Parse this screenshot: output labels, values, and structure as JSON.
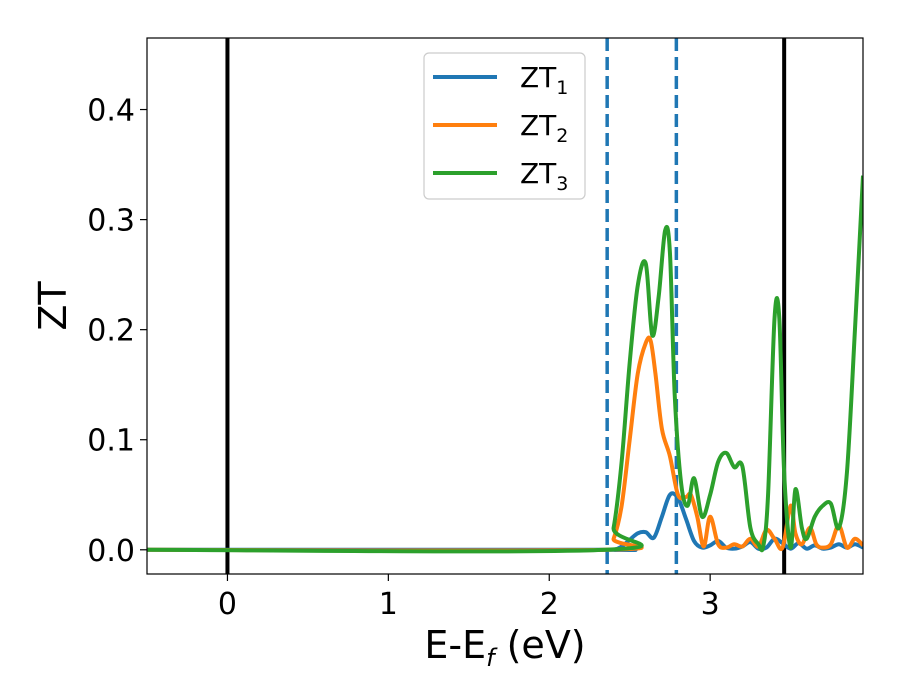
{
  "chart_data": {
    "type": "line",
    "xlabel": "E-E",
    "xlabel_sub": "f",
    "xlabel_unit": " (eV)",
    "ylabel": "ZT",
    "xlim": [
      -0.5,
      3.95
    ],
    "ylim": [
      -0.022,
      0.465
    ],
    "xticks": [
      0,
      1,
      2,
      3
    ],
    "xtick_labels": [
      "0",
      "1",
      "2",
      "3"
    ],
    "yticks": [
      0.0,
      0.1,
      0.2,
      0.3,
      0.4
    ],
    "ytick_labels": [
      "0.0",
      "0.1",
      "0.2",
      "0.3",
      "0.4"
    ],
    "grid": false,
    "legend_position": "top-center",
    "vlines": [
      {
        "x": 0.0,
        "style": "solid",
        "color": "#000000"
      },
      {
        "x": 3.46,
        "style": "solid",
        "color": "#000000"
      },
      {
        "x": 2.36,
        "style": "dashed",
        "color": "#1f77b4"
      },
      {
        "x": 2.79,
        "style": "dashed",
        "color": "#1f77b4"
      }
    ],
    "series": [
      {
        "name": "ZT",
        "name_sub": "1",
        "color": "#1f77b4",
        "x": [
          -0.5,
          2.3,
          2.4,
          2.45,
          2.5,
          2.55,
          2.6,
          2.65,
          2.7,
          2.75,
          2.8,
          2.85,
          2.9,
          2.95,
          3.0,
          3.05,
          3.1,
          3.15,
          3.2,
          3.25,
          3.3,
          3.35,
          3.4,
          3.45,
          3.5,
          3.55,
          3.6,
          3.65,
          3.7,
          3.75,
          3.8,
          3.85,
          3.9,
          3.95
        ],
        "y": [
          0.0,
          0.0,
          0.0,
          0.003,
          0.009,
          0.015,
          0.016,
          0.011,
          0.03,
          0.05,
          0.047,
          0.028,
          0.008,
          0.002,
          0.004,
          0.008,
          0.002,
          0.001,
          0.003,
          0.007,
          0.001,
          0.002,
          0.01,
          0.006,
          0.001,
          0.006,
          0.001,
          0.004,
          0.001,
          0.002,
          0.005,
          0.002,
          0.005,
          0.002
        ]
      },
      {
        "name": "ZT",
        "name_sub": "2",
        "color": "#ff7f0e",
        "x": [
          -0.5,
          2.35,
          2.4,
          2.45,
          2.5,
          2.55,
          2.6,
          2.63,
          2.66,
          2.7,
          2.75,
          2.8,
          2.85,
          2.88,
          2.92,
          2.96,
          3.0,
          3.05,
          3.1,
          3.15,
          3.2,
          3.25,
          3.3,
          3.35,
          3.4,
          3.45,
          3.5,
          3.53,
          3.57,
          3.62,
          3.66,
          3.7,
          3.75,
          3.8,
          3.85,
          3.9,
          3.95
        ],
        "y": [
          0.0,
          0.0,
          0.01,
          0.04,
          0.1,
          0.16,
          0.188,
          0.19,
          0.16,
          0.11,
          0.085,
          0.05,
          0.048,
          0.05,
          0.03,
          0.003,
          0.03,
          0.005,
          0.002,
          0.005,
          0.003,
          0.01,
          0.003,
          0.018,
          0.01,
          0.002,
          0.04,
          0.015,
          0.005,
          0.02,
          0.005,
          0.002,
          0.005,
          0.022,
          0.002,
          0.01,
          0.004
        ]
      },
      {
        "name": "ZT",
        "name_sub": "3",
        "color": "#2ca02c",
        "x": [
          -0.5,
          2.35,
          2.4,
          2.45,
          2.5,
          2.55,
          2.6,
          2.64,
          2.68,
          2.72,
          2.75,
          2.78,
          2.82,
          2.86,
          2.9,
          2.95,
          3.0,
          3.05,
          3.1,
          3.15,
          3.2,
          3.25,
          3.3,
          3.33,
          3.36,
          3.4,
          3.43,
          3.46,
          3.5,
          3.53,
          3.57,
          3.6,
          3.65,
          3.7,
          3.75,
          3.8,
          3.85,
          3.9,
          3.95
        ],
        "y": [
          0.0,
          0.0,
          0.02,
          0.08,
          0.17,
          0.24,
          0.26,
          0.195,
          0.23,
          0.29,
          0.27,
          0.14,
          0.06,
          0.04,
          0.065,
          0.03,
          0.05,
          0.08,
          0.088,
          0.075,
          0.076,
          0.02,
          0.005,
          0.003,
          0.05,
          0.21,
          0.21,
          0.07,
          0.002,
          0.055,
          0.02,
          0.01,
          0.03,
          0.04,
          0.042,
          0.02,
          0.07,
          0.2,
          0.34
        ]
      }
    ]
  }
}
